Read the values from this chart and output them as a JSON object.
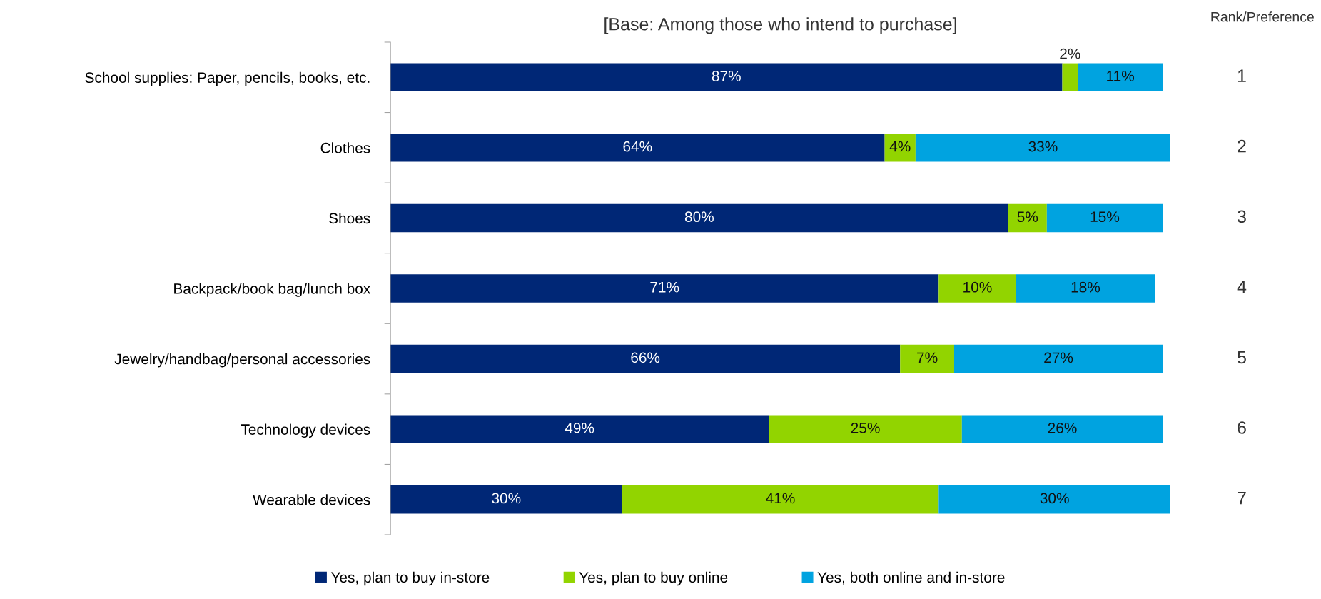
{
  "chart_data": {
    "type": "bar",
    "orientation": "horizontal",
    "stacked": true,
    "title": "[Base: Among those who intend to purchase]",
    "categories": [
      "School supplies: Paper, pencils, books, etc.",
      "Clothes",
      "Shoes",
      "Backpack/book bag/lunch box",
      "Jewelry/handbag/personal accessories",
      "Technology devices",
      "Wearable devices"
    ],
    "series": [
      {
        "name": "Yes, plan to buy in-store",
        "color": "#002776",
        "values": [
          87,
          64,
          80,
          71,
          66,
          49,
          30
        ],
        "value_labels": [
          "87%",
          "64%",
          "80%",
          "71%",
          "66%",
          "49%",
          "30%"
        ]
      },
      {
        "name": "Yes, plan to buy online",
        "color": "#92d400",
        "values": [
          2,
          4,
          5,
          10,
          7,
          25,
          41
        ],
        "value_labels": [
          "2%",
          "4%",
          "5%",
          "10%",
          "7%",
          "25%",
          "41%"
        ]
      },
      {
        "name": "Yes, both online and in-store",
        "color": "#00a3e0",
        "values": [
          11,
          33,
          15,
          18,
          27,
          26,
          30
        ],
        "value_labels": [
          "11%",
          "33%",
          "15%",
          "18%",
          "27%",
          "26%",
          "30%"
        ]
      }
    ],
    "tick_labels": "y",
    "legend": "bottom",
    "grid": false,
    "annotations": [
      "Rank/Preference",
      "1",
      "2",
      "3",
      "4",
      "5",
      "6",
      "7"
    ]
  }
}
